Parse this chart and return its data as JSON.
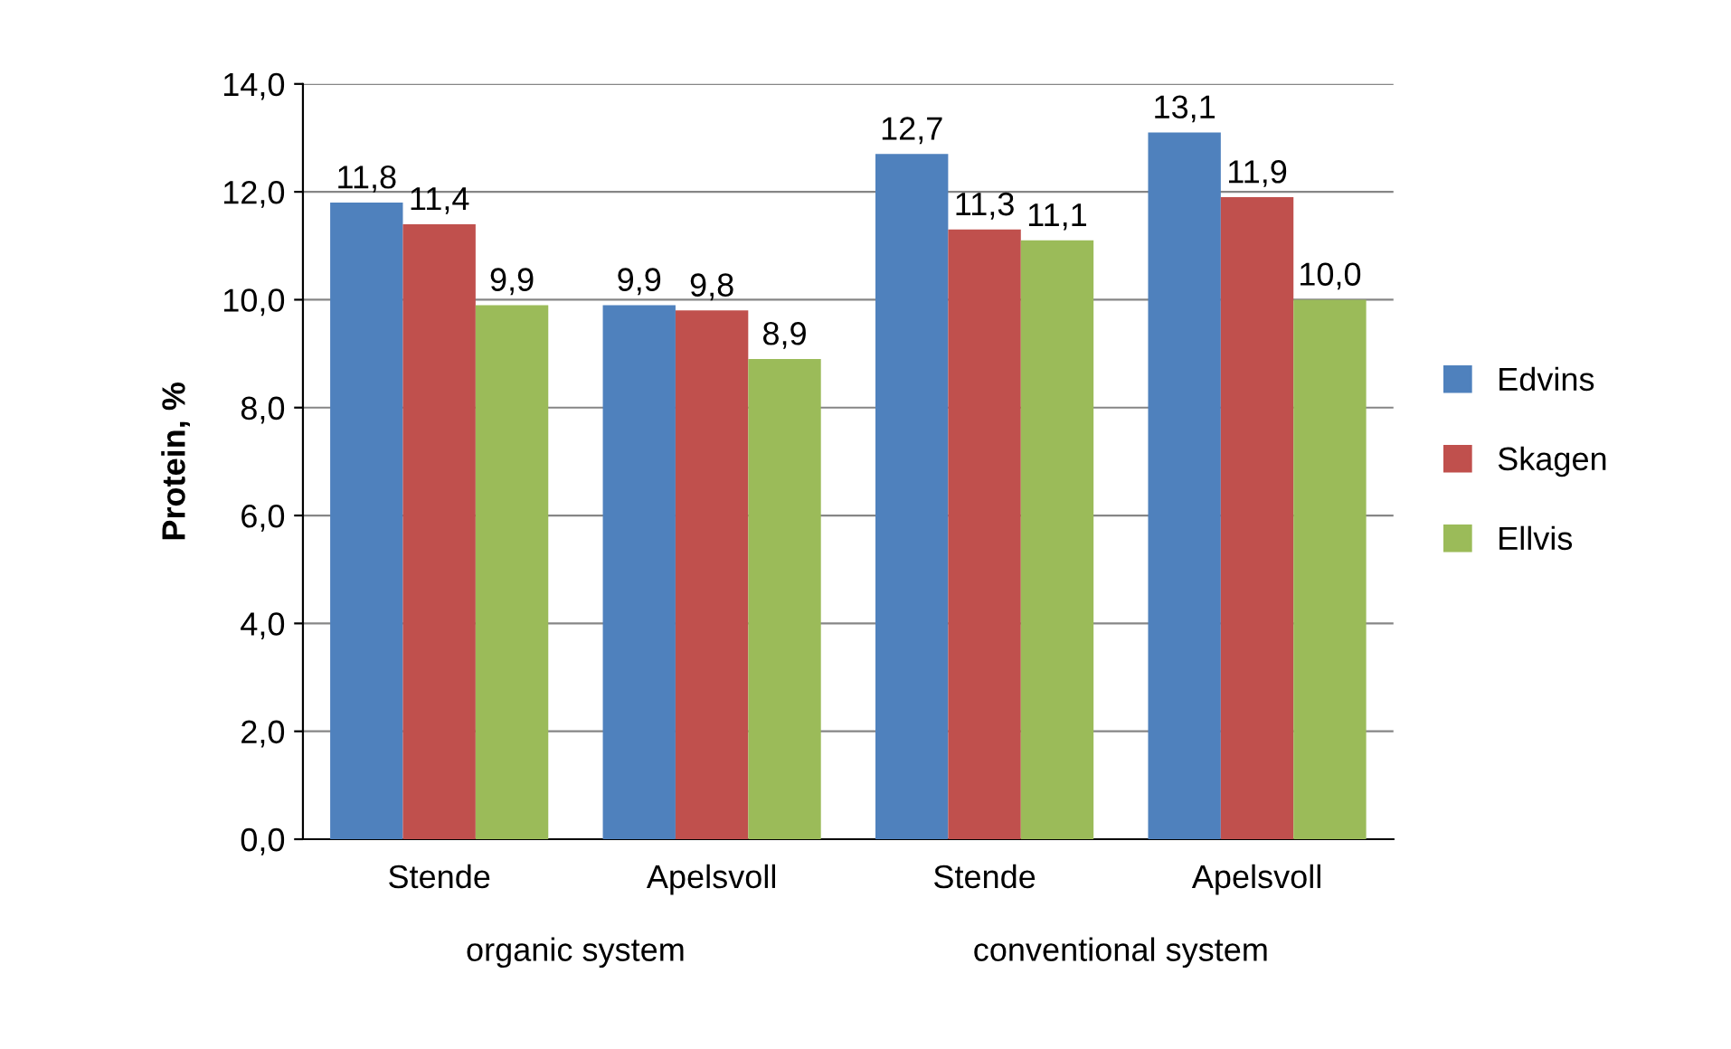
{
  "chart_data": {
    "type": "bar",
    "ylabel": "Protein, %",
    "categories": [
      "Stende",
      "Apelsvoll",
      "Stende",
      "Apelsvoll"
    ],
    "series": [
      {
        "name": "Edvins",
        "color": "#4f81bd",
        "values": [
          11.8,
          9.9,
          12.7,
          13.1
        ],
        "value_labels": [
          "11,8",
          "9,9",
          "12,7",
          "13,1"
        ]
      },
      {
        "name": "Skagen",
        "color": "#c0504d",
        "values": [
          11.4,
          9.8,
          11.3,
          11.9
        ],
        "value_labels": [
          "11,4",
          "9,8",
          "11,3",
          "11,9"
        ]
      },
      {
        "name": "Ellvis",
        "color": "#9bbb59",
        "values": [
          9.9,
          8.9,
          11.1,
          10.0
        ],
        "value_labels": [
          "9,9",
          "8,9",
          "11,1",
          "10,0"
        ]
      }
    ],
    "ylim": [
      0,
      14
    ],
    "yticks": [
      {
        "value": 0,
        "label": "0,0"
      },
      {
        "value": 2,
        "label": "2,0"
      },
      {
        "value": 4,
        "label": "4,0"
      },
      {
        "value": 6,
        "label": "6,0"
      },
      {
        "value": 8,
        "label": "8,0"
      },
      {
        "value": 10,
        "label": "10,0"
      },
      {
        "value": 12,
        "label": "12,0"
      },
      {
        "value": 14,
        "label": "14,0"
      }
    ],
    "grid": "y",
    "legend": "right",
    "annotations": [
      "organic system",
      "conventional system"
    ]
  }
}
